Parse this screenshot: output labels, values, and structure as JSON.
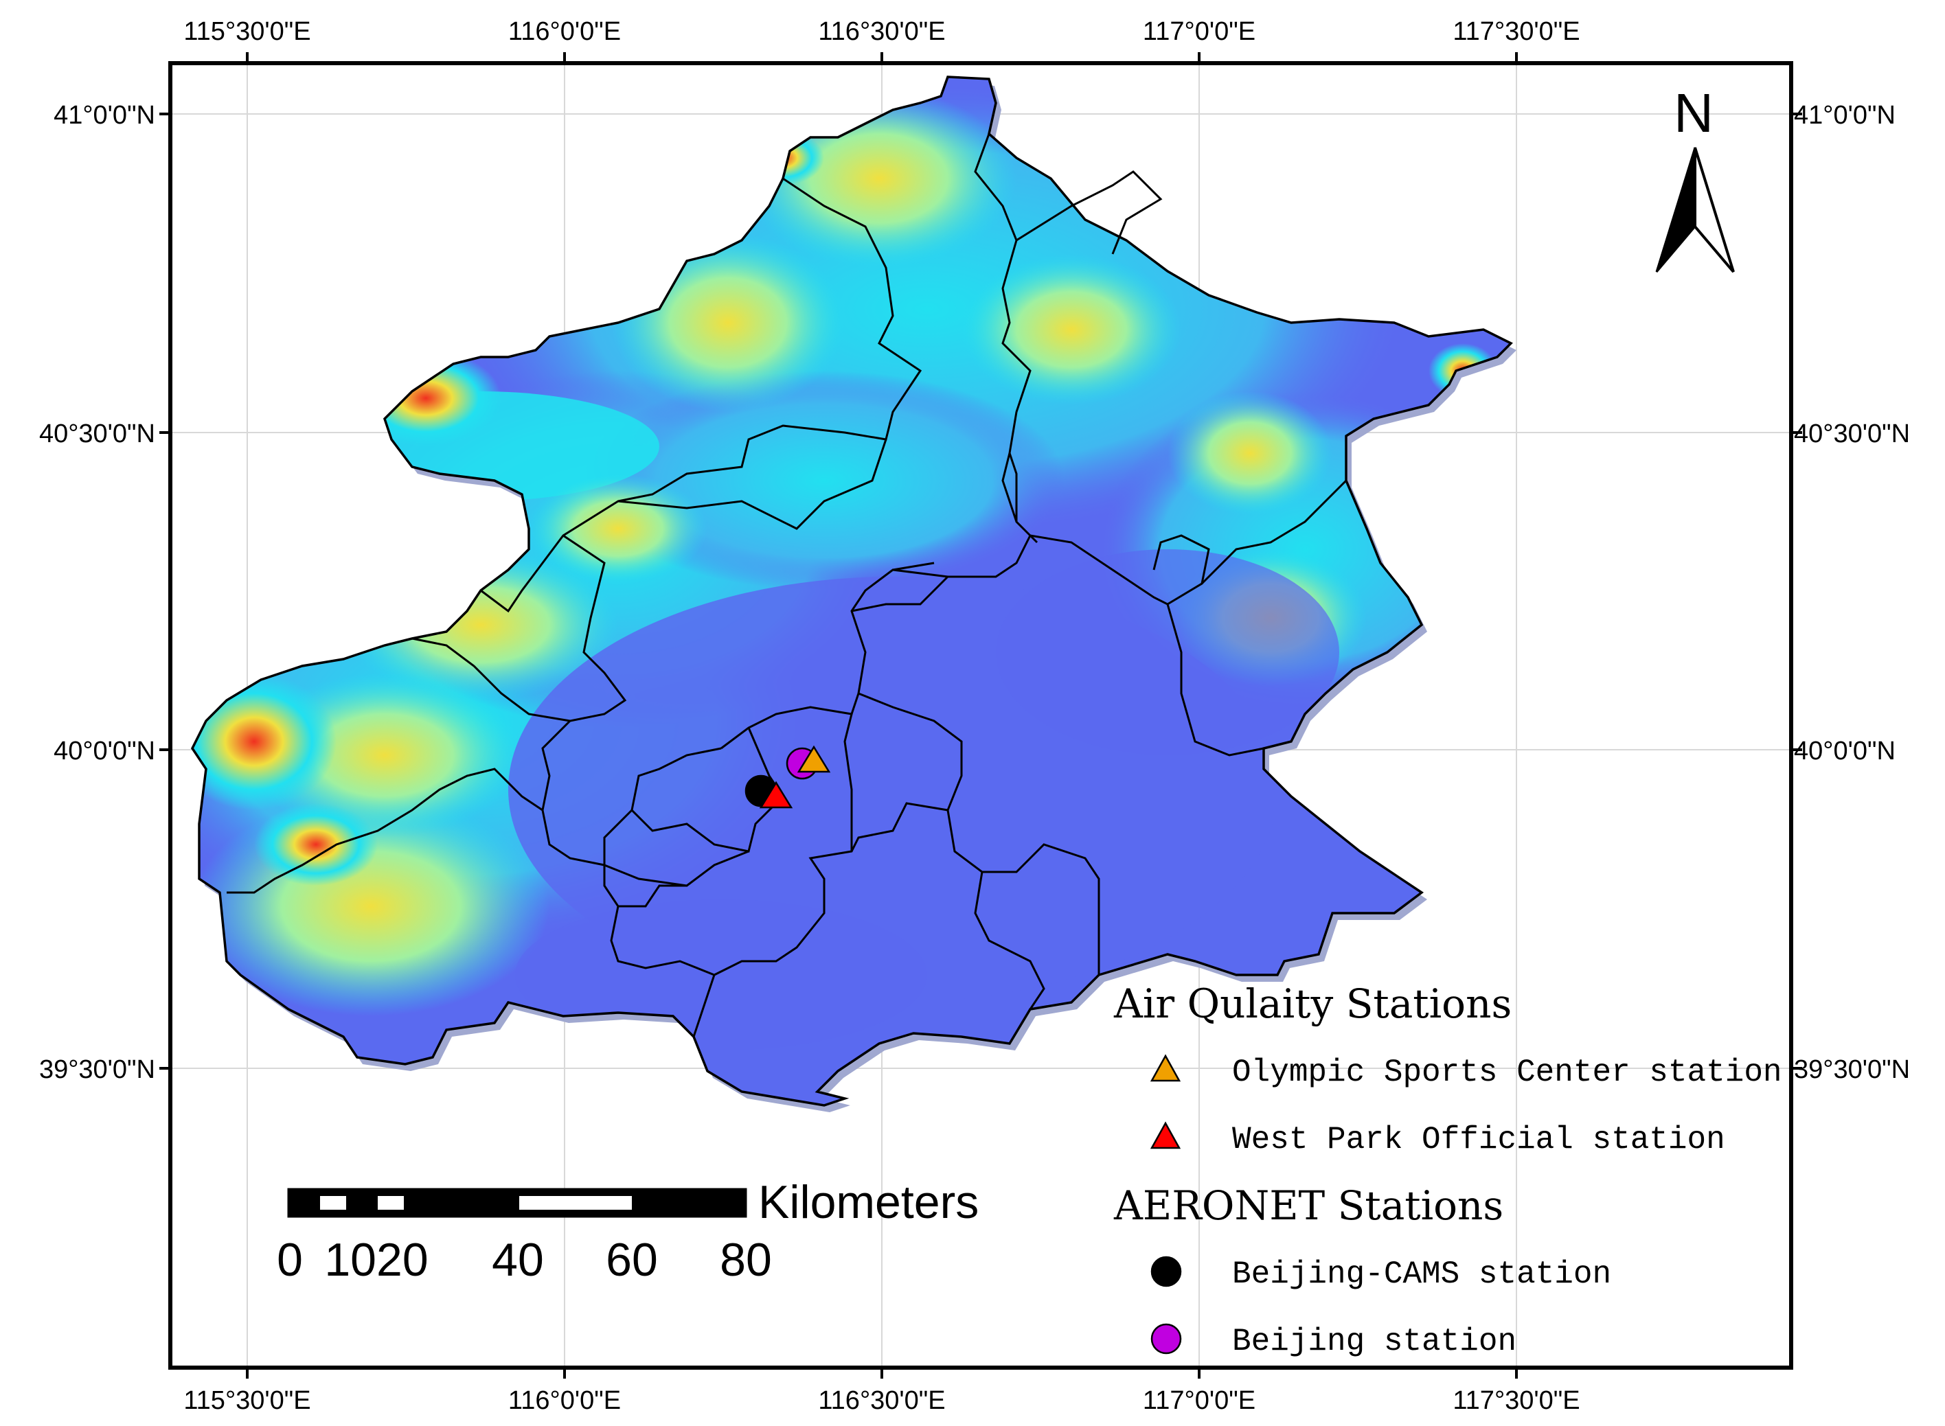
{
  "axes": {
    "top_labels": [
      "115°30'0\"E",
      "116°0'0\"E",
      "116°30'0\"E",
      "117°0'0\"E",
      "117°30'0\"E"
    ],
    "bottom_labels": [
      "115°30'0\"E",
      "116°0'0\"E",
      "116°30'0\"E",
      "117°0'0\"E",
      "117°30'0\"E"
    ],
    "left_labels": [
      "41°0'0\"N",
      "40°30'0\"N",
      "40°0'0\"N",
      "39°30'0\"N"
    ],
    "right_labels": [
      "41°0'0\"N",
      "40°30'0\"N",
      "40°0'0\"N",
      "39°30'0\"N"
    ]
  },
  "north_arrow": {
    "label": "N",
    "icon": "north-arrow-icon"
  },
  "legend": {
    "air_quality_title": "Air Qulaity Stations",
    "air_quality_items": [
      {
        "label": "Olympic Sports Center station",
        "symbol": "triangle",
        "color": "#f0a000"
      },
      {
        "label": "West Park Official station",
        "symbol": "triangle",
        "color": "#ff0000"
      }
    ],
    "aeronet_title": "AERONET Stations",
    "aeronet_items": [
      {
        "label": "Beijing-CAMS station",
        "symbol": "circle",
        "color": "#000000"
      },
      {
        "label": "Beijing station",
        "symbol": "circle",
        "color": "#c000e0"
      }
    ]
  },
  "scale_bar": {
    "unit": "Kilometers",
    "labels": [
      "0",
      "1020",
      "40",
      "60",
      "80"
    ]
  },
  "colors": {
    "lowland": "#5a6af0",
    "hill": "#22e0f0",
    "mountain": "#f0e040",
    "peak": "#f03020",
    "frame": "#000000"
  }
}
